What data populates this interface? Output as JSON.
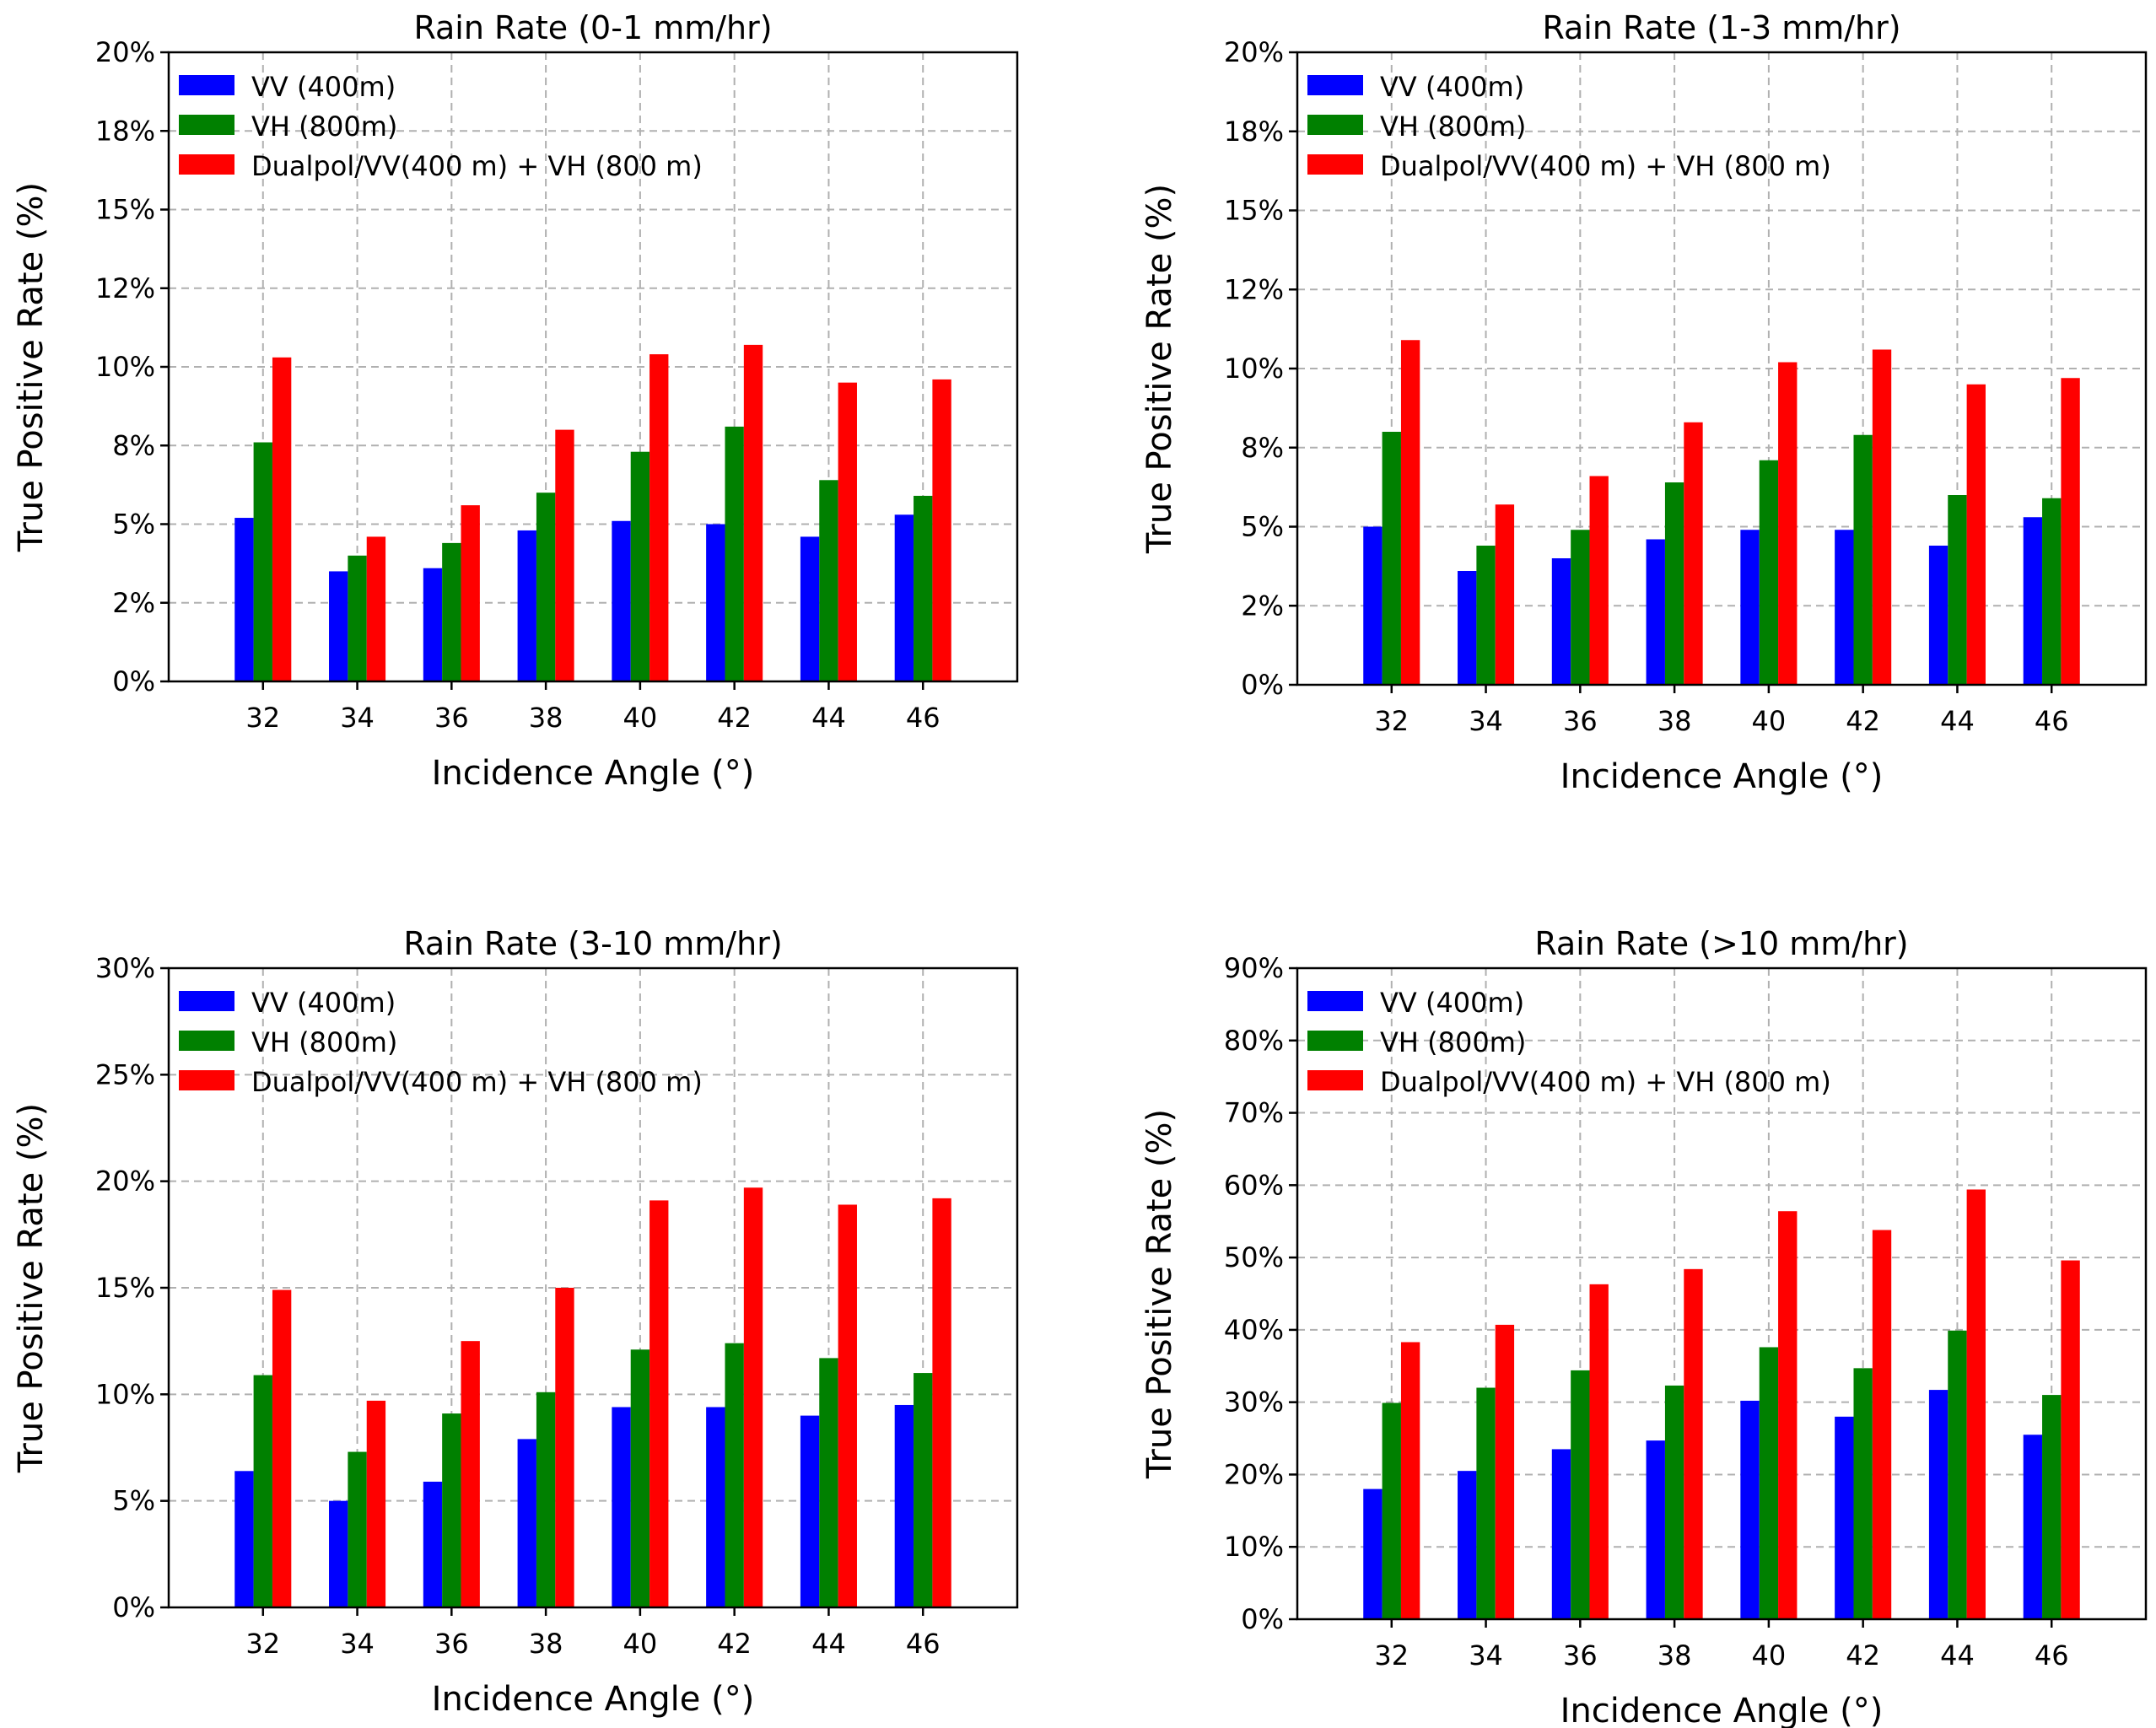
{
  "chart_data": [
    {
      "type": "bar",
      "title": "Rain Rate (0-1 mm/hr)",
      "xlabel": "Incidence Angle (°)",
      "ylabel": "True Positive Rate (%)",
      "categories": [
        "32",
        "34",
        "36",
        "38",
        "40",
        "42",
        "44",
        "46"
      ],
      "ylim": [
        0,
        20
      ],
      "yticks": [
        0,
        2.5,
        5,
        7.5,
        10,
        12.5,
        15,
        17.5,
        20
      ],
      "ytick_labels": [
        "0%",
        "2%",
        "5%",
        "8%",
        "10%",
        "12%",
        "15%",
        "18%",
        "20%"
      ],
      "grid": true,
      "legend_position": "top-left",
      "series": [
        {
          "name": "VV (400m)",
          "color": "#0000ff",
          "values": [
            5.2,
            3.5,
            3.6,
            4.8,
            5.1,
            5.0,
            4.6,
            5.3
          ]
        },
        {
          "name": "VH (800m)",
          "color": "#008000",
          "values": [
            7.6,
            4.0,
            4.4,
            6.0,
            7.3,
            8.1,
            6.4,
            5.9
          ]
        },
        {
          "name": "Dualpol/VV(400 m) + VH (800 m)",
          "color": "#ff0000",
          "values": [
            10.3,
            4.6,
            5.6,
            8.0,
            10.4,
            10.7,
            9.5,
            9.6
          ]
        }
      ]
    },
    {
      "type": "bar",
      "title": "Rain Rate (1-3 mm/hr)",
      "xlabel": "Incidence Angle (°)",
      "ylabel": "True Positive Rate (%)",
      "categories": [
        "32",
        "34",
        "36",
        "38",
        "40",
        "42",
        "44",
        "46"
      ],
      "ylim": [
        0,
        20
      ],
      "yticks": [
        0,
        2.5,
        5,
        7.5,
        10,
        12.5,
        15,
        17.5,
        20
      ],
      "ytick_labels": [
        "0%",
        "2%",
        "5%",
        "8%",
        "10%",
        "12%",
        "15%",
        "18%",
        "20%"
      ],
      "grid": true,
      "legend_position": "top-left",
      "series": [
        {
          "name": "VV (400m)",
          "color": "#0000ff",
          "values": [
            5.0,
            3.6,
            4.0,
            4.6,
            4.9,
            4.9,
            4.4,
            5.3
          ]
        },
        {
          "name": "VH (800m)",
          "color": "#008000",
          "values": [
            8.0,
            4.4,
            4.9,
            6.4,
            7.1,
            7.9,
            6.0,
            5.9
          ]
        },
        {
          "name": "Dualpol/VV(400 m) + VH (800 m)",
          "color": "#ff0000",
          "values": [
            10.9,
            5.7,
            6.6,
            8.3,
            10.2,
            10.6,
            9.5,
            9.7
          ]
        }
      ]
    },
    {
      "type": "bar",
      "title": "Rain Rate (3-10 mm/hr)",
      "xlabel": "Incidence Angle (°)",
      "ylabel": "True Positive Rate (%)",
      "categories": [
        "32",
        "34",
        "36",
        "38",
        "40",
        "42",
        "44",
        "46"
      ],
      "ylim": [
        0,
        30
      ],
      "yticks": [
        0,
        5,
        10,
        15,
        20,
        25,
        30
      ],
      "ytick_labels": [
        "0%",
        "5%",
        "10%",
        "15%",
        "20%",
        "25%",
        "30%"
      ],
      "grid": true,
      "legend_position": "top-left",
      "series": [
        {
          "name": "VV (400m)",
          "color": "#0000ff",
          "values": [
            6.4,
            5.0,
            5.9,
            7.9,
            9.4,
            9.4,
            9.0,
            9.5
          ]
        },
        {
          "name": "VH (800m)",
          "color": "#008000",
          "values": [
            10.9,
            7.3,
            9.1,
            10.1,
            12.1,
            12.4,
            11.7,
            11.0
          ]
        },
        {
          "name": "Dualpol/VV(400 m) + VH (800 m)",
          "color": "#ff0000",
          "values": [
            14.9,
            9.7,
            12.5,
            15.0,
            19.1,
            19.7,
            18.9,
            19.2
          ]
        }
      ]
    },
    {
      "type": "bar",
      "title": "Rain Rate (>10 mm/hr)",
      "xlabel": "Incidence Angle (°)",
      "ylabel": "True Positive Rate (%)",
      "categories": [
        "32",
        "34",
        "36",
        "38",
        "40",
        "42",
        "44",
        "46"
      ],
      "ylim": [
        0,
        90
      ],
      "yticks": [
        0,
        10,
        20,
        30,
        40,
        50,
        60,
        70,
        80,
        90
      ],
      "ytick_labels": [
        "0%",
        "10%",
        "20%",
        "30%",
        "40%",
        "50%",
        "60%",
        "70%",
        "80%",
        "90%"
      ],
      "grid": true,
      "legend_position": "top-left",
      "series": [
        {
          "name": "VV (400m)",
          "color": "#0000ff",
          "values": [
            18.0,
            20.5,
            23.5,
            24.7,
            30.2,
            28.0,
            31.7,
            25.5
          ]
        },
        {
          "name": "VH (800m)",
          "color": "#008000",
          "values": [
            29.9,
            32.0,
            34.4,
            32.3,
            37.6,
            34.7,
            39.9,
            31.0
          ]
        },
        {
          "name": "Dualpol/VV(400 m) + VH (800 m)",
          "color": "#ff0000",
          "values": [
            38.3,
            40.7,
            46.3,
            48.4,
            56.4,
            53.8,
            59.4,
            49.6
          ]
        }
      ]
    }
  ]
}
